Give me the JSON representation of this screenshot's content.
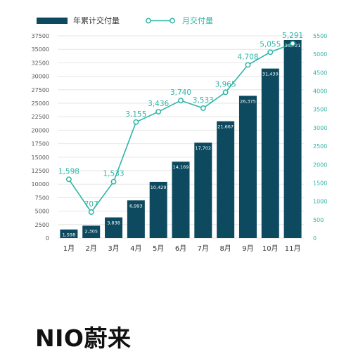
{
  "colors": {
    "bar": "#0d4a5f",
    "line": "#2fb5a7",
    "grid": "#e6e6e6",
    "tick": "#555555",
    "right_tick": "#2fb5a7",
    "bar_label": "#ffffff"
  },
  "brand": {
    "logo_text": "NIO蔚来"
  },
  "chart_data": {
    "type": "bar",
    "categories": [
      "1月",
      "2月",
      "3月",
      "4月",
      "5月",
      "6月",
      "7月",
      "8月",
      "9月",
      "10月",
      "11月"
    ],
    "series": [
      {
        "name": "年累计交付量",
        "type": "bar",
        "axis": "left",
        "values": [
          1598,
          2305,
          3838,
          6993,
          10429,
          14169,
          17702,
          21667,
          26375,
          31430,
          36721
        ],
        "labels": [
          "1,598",
          "2,305",
          "3,838",
          "6,993",
          "10,429",
          "14,169",
          "17,702",
          "21,667",
          "26,375",
          "31,430",
          "36,721"
        ]
      },
      {
        "name": "月交付量",
        "type": "line",
        "axis": "right",
        "values": [
          1598,
          707,
          1533,
          3155,
          3436,
          3740,
          3533,
          3965,
          4708,
          5055,
          5291
        ],
        "labels": [
          "1,598",
          "707",
          "1,533",
          "3,155",
          "3,436",
          "3,740",
          "3,533",
          "3,965",
          "4,708",
          "5,055",
          "5,291"
        ]
      }
    ],
    "y_left": {
      "ylim": [
        0,
        37500
      ],
      "ticks": [
        "0",
        "2500",
        "5000",
        "7500",
        "10000",
        "12500",
        "15000",
        "17500",
        "20000",
        "22500",
        "25000",
        "27500",
        "30000",
        "32500",
        "35000",
        "37500"
      ]
    },
    "y_right": {
      "ylim": [
        0,
        5500
      ],
      "ticks": [
        "0",
        "500",
        "1000",
        "1500",
        "2000",
        "2500",
        "3000",
        "3500",
        "4000",
        "4500",
        "5000",
        "5500"
      ]
    },
    "grid": true,
    "legend": "top"
  }
}
